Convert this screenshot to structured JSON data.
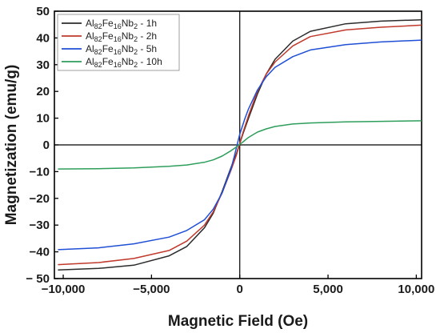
{
  "chart_data": {
    "type": "line",
    "title": "",
    "xlabel": "Magnetic Field (Oe)",
    "ylabel": "Magnetization (emu/g)",
    "xlim": [
      -10500,
      10300
    ],
    "ylim": [
      -50,
      50
    ],
    "x_ticks": [
      -10000,
      -5000,
      0,
      5000,
      10000
    ],
    "x_tick_labels": [
      "−10,000",
      "−5,000",
      "0",
      "5,000",
      "10,000"
    ],
    "y_ticks": [
      -50,
      -40,
      -30,
      -20,
      -10,
      0,
      10,
      20,
      30,
      40,
      50
    ],
    "y_tick_labels": [
      "− 50",
      "−40",
      "−30",
      "−20",
      "−10",
      "0",
      "10",
      "20",
      "30",
      "40",
      "50"
    ],
    "grid": false,
    "legend_position": "top-left",
    "series": [
      {
        "name": "Al82Fe16Nb2 - 1h",
        "legend": {
          "base": "Al",
          "s1": "82",
          "mid": "Fe",
          "s2": "16",
          "mid2": "Nb",
          "s3": "2",
          "tail": " - 1h"
        },
        "color": "#2b2b2b",
        "x": [
          -10300,
          -8000,
          -6000,
          -4000,
          -3000,
          -2000,
          -1500,
          -1000,
          -500,
          -200,
          0,
          200,
          500,
          1000,
          1500,
          2000,
          3000,
          4000,
          6000,
          8000,
          10300
        ],
        "y": [
          -46.8,
          -46.2,
          -45.0,
          -41.5,
          -38.0,
          -31.0,
          -25.5,
          -17.5,
          -8.5,
          -3.5,
          0.5,
          4.5,
          10.0,
          19.0,
          26.5,
          32.0,
          38.8,
          42.5,
          45.3,
          46.3,
          46.8
        ]
      },
      {
        "name": "Al82Fe16Nb2 - 2h",
        "legend": {
          "base": "Al",
          "s1": "82",
          "mid": "Fe",
          "s2": "16",
          "mid2": "Nb",
          "s3": "2",
          "tail": " - 2h"
        },
        "color": "#c0392b",
        "x": [
          -10300,
          -8000,
          -6000,
          -4000,
          -3000,
          -2000,
          -1500,
          -1000,
          -500,
          -200,
          0,
          200,
          500,
          1000,
          1500,
          2000,
          3000,
          4000,
          6000,
          8000,
          10300
        ],
        "y": [
          -44.8,
          -44.0,
          -42.5,
          -39.5,
          -36.0,
          -30.0,
          -25.0,
          -18.0,
          -9.5,
          -4.0,
          0.5,
          5.0,
          11.0,
          20.0,
          26.5,
          31.0,
          37.0,
          40.5,
          43.0,
          44.0,
          44.8
        ]
      },
      {
        "name": "Al82Fe16Nb2 - 5h",
        "legend": {
          "base": "Al",
          "s1": "82",
          "mid": "Fe",
          "s2": "16",
          "mid2": "Nb",
          "s3": "2",
          "tail": " - 5h"
        },
        "color": "#1f4fd6",
        "x": [
          -10300,
          -8000,
          -6000,
          -4000,
          -3000,
          -2000,
          -1500,
          -1000,
          -500,
          -300,
          0,
          300,
          500,
          1000,
          1500,
          2000,
          3000,
          4000,
          6000,
          8000,
          10300
        ],
        "y": [
          -39.2,
          -38.5,
          -37.0,
          -34.5,
          -32.0,
          -28.0,
          -24.0,
          -18.0,
          -9.0,
          -4.0,
          4.0,
          10.0,
          13.5,
          20.5,
          25.5,
          29.0,
          33.0,
          35.5,
          37.5,
          38.5,
          39.2
        ]
      },
      {
        "name": "Al82Fe16Nb2 - 10h",
        "legend": {
          "base": "Al",
          "s1": "82",
          "mid": "Fe",
          "s2": "16",
          "mid2": "Nb",
          "s3": "2",
          "tail": " - 10h"
        },
        "color": "#2e9e5b",
        "x": [
          -10300,
          -8000,
          -6000,
          -4000,
          -3000,
          -2000,
          -1500,
          -1000,
          -500,
          -200,
          0,
          200,
          500,
          1000,
          1500,
          2000,
          3000,
          4000,
          6000,
          8000,
          10300
        ],
        "y": [
          -9.0,
          -8.9,
          -8.6,
          -8.0,
          -7.5,
          -6.5,
          -5.6,
          -4.2,
          -2.2,
          -0.8,
          0.2,
          1.2,
          2.8,
          4.8,
          6.0,
          6.9,
          7.8,
          8.2,
          8.6,
          8.8,
          9.0
        ]
      }
    ]
  }
}
